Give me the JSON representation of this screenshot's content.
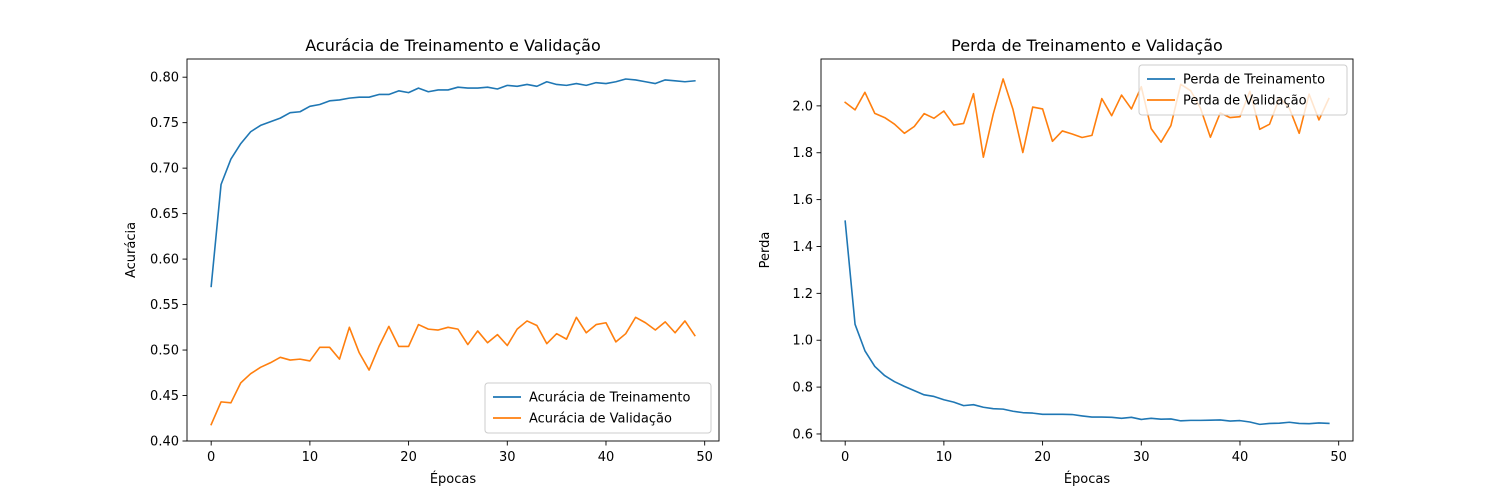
{
  "chart_data": [
    {
      "type": "line",
      "title": "Acurácia de Treinamento e Validação",
      "xlabel": "Épocas",
      "ylabel": "Acurácia",
      "xlim": [
        -2.45,
        51.45
      ],
      "ylim": [
        0.4,
        0.82
      ],
      "xticks": [
        0,
        10,
        20,
        30,
        40,
        50
      ],
      "xtick_labels": [
        "0",
        "10",
        "20",
        "30",
        "40",
        "50"
      ],
      "yticks": [
        0.4,
        0.45,
        0.5,
        0.55,
        0.6,
        0.65,
        0.7,
        0.75,
        0.8
      ],
      "ytick_labels": [
        "0.40",
        "0.45",
        "0.50",
        "0.55",
        "0.60",
        "0.65",
        "0.70",
        "0.75",
        "0.80"
      ],
      "grid": false,
      "legend_position": "lower-right",
      "series": [
        {
          "name": "Acurácia de Treinamento",
          "color": "#1f77b4",
          "values": [
            0.57,
            0.682,
            0.71,
            0.727,
            0.74,
            0.747,
            0.751,
            0.755,
            0.761,
            0.762,
            0.768,
            0.77,
            0.774,
            0.775,
            0.777,
            0.778,
            0.778,
            0.781,
            0.781,
            0.785,
            0.783,
            0.788,
            0.784,
            0.786,
            0.786,
            0.789,
            0.788,
            0.788,
            0.789,
            0.787,
            0.791,
            0.79,
            0.792,
            0.79,
            0.795,
            0.792,
            0.791,
            0.793,
            0.791,
            0.794,
            0.793,
            0.795,
            0.798,
            0.797,
            0.795,
            0.793,
            0.797,
            0.796,
            0.795,
            0.796
          ]
        },
        {
          "name": "Acurácia de Validação",
          "color": "#ff7f0e",
          "values": [
            0.418,
            0.443,
            0.442,
            0.464,
            0.474,
            0.481,
            0.486,
            0.492,
            0.489,
            0.49,
            0.488,
            0.503,
            0.503,
            0.49,
            0.525,
            0.497,
            0.478,
            0.504,
            0.526,
            0.504,
            0.504,
            0.528,
            0.523,
            0.522,
            0.525,
            0.523,
            0.506,
            0.521,
            0.508,
            0.517,
            0.505,
            0.523,
            0.532,
            0.527,
            0.507,
            0.518,
            0.512,
            0.536,
            0.519,
            0.528,
            0.53,
            0.509,
            0.518,
            0.536,
            0.53,
            0.522,
            0.531,
            0.519,
            0.532,
            0.516
          ]
        }
      ]
    },
    {
      "type": "line",
      "title": "Perda de Treinamento e Validação",
      "xlabel": "Épocas",
      "ylabel": "Perda",
      "xlim": [
        -2.45,
        51.45
      ],
      "ylim": [
        0.57,
        2.2
      ],
      "xticks": [
        0,
        10,
        20,
        30,
        40,
        50
      ],
      "xtick_labels": [
        "0",
        "10",
        "20",
        "30",
        "40",
        "50"
      ],
      "yticks": [
        0.6,
        0.8,
        1.0,
        1.2,
        1.4,
        1.6,
        1.8,
        2.0
      ],
      "ytick_labels": [
        "0.6",
        "0.8",
        "1.0",
        "1.2",
        "1.4",
        "1.6",
        "1.8",
        "2.0"
      ],
      "grid": false,
      "legend_position": "upper-right",
      "series": [
        {
          "name": "Perda de Treinamento",
          "color": "#1f77b4",
          "values": [
            1.508,
            1.068,
            0.955,
            0.888,
            0.849,
            0.823,
            0.803,
            0.785,
            0.767,
            0.76,
            0.746,
            0.736,
            0.721,
            0.725,
            0.714,
            0.708,
            0.706,
            0.697,
            0.691,
            0.689,
            0.684,
            0.684,
            0.684,
            0.683,
            0.677,
            0.672,
            0.672,
            0.671,
            0.667,
            0.671,
            0.662,
            0.667,
            0.663,
            0.664,
            0.656,
            0.658,
            0.658,
            0.659,
            0.66,
            0.655,
            0.657,
            0.651,
            0.641,
            0.645,
            0.646,
            0.65,
            0.645,
            0.644,
            0.647,
            0.645
          ]
        },
        {
          "name": "Perda de Validação",
          "color": "#ff7f0e",
          "values": [
            2.015,
            1.983,
            2.058,
            1.968,
            1.95,
            1.922,
            1.883,
            1.912,
            1.967,
            1.947,
            1.978,
            1.918,
            1.925,
            2.052,
            1.781,
            1.965,
            2.115,
            1.985,
            1.801,
            1.995,
            1.987,
            1.849,
            1.893,
            1.88,
            1.865,
            1.874,
            2.031,
            1.958,
            2.046,
            1.987,
            2.082,
            1.903,
            1.845,
            1.916,
            2.092,
            2.065,
            1.99,
            1.866,
            1.97,
            1.95,
            1.954,
            2.062,
            1.9,
            1.922,
            2.035,
            1.99,
            1.883,
            2.05,
            1.94,
            2.031
          ]
        }
      ]
    }
  ]
}
